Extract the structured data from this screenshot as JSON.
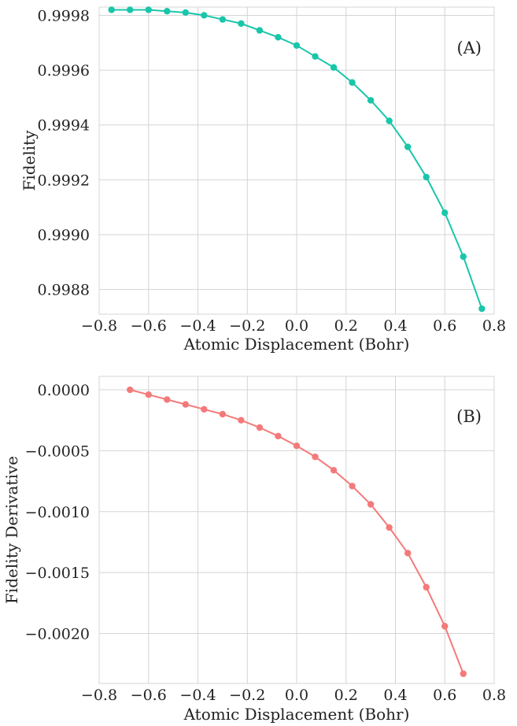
{
  "chart_data": [
    {
      "type": "line",
      "panel_label": "(A)",
      "xlabel": "Atomic Displacement (Bohr)",
      "ylabel": "Fidelity",
      "xlim": [
        -0.8,
        0.8
      ],
      "ylim": [
        0.99871,
        0.99983
      ],
      "xticks": [
        -0.8,
        -0.6,
        -0.4,
        -0.2,
        0.0,
        0.2,
        0.4,
        0.6,
        0.8
      ],
      "xtick_labels": [
        "−0.8",
        "−0.6",
        "−0.4",
        "−0.2",
        "0.0",
        "0.2",
        "0.4",
        "0.6",
        "0.8"
      ],
      "yticks": [
        0.9988,
        0.999,
        0.9992,
        0.9994,
        0.9996,
        0.9998
      ],
      "ytick_labels": [
        "0.9988",
        "0.9990",
        "0.9992",
        "0.9994",
        "0.9996",
        "0.9998"
      ],
      "grid": true,
      "color": "#19c6aa",
      "x": [
        -0.75,
        -0.675,
        -0.6,
        -0.525,
        -0.45,
        -0.375,
        -0.3,
        -0.225,
        -0.15,
        -0.075,
        0.0,
        0.075,
        0.15,
        0.225,
        0.3,
        0.375,
        0.45,
        0.525,
        0.6,
        0.675,
        0.75
      ],
      "y": [
        0.99982,
        0.99982,
        0.99982,
        0.999815,
        0.99981,
        0.9998,
        0.999785,
        0.99977,
        0.999745,
        0.99972,
        0.99969,
        0.99965,
        0.99961,
        0.999555,
        0.99949,
        0.999415,
        0.99932,
        0.99921,
        0.99908,
        0.99892,
        0.99873
      ]
    },
    {
      "type": "line",
      "panel_label": "(B)",
      "xlabel": "Atomic Displacement (Bohr)",
      "ylabel": "Fidelity Derivative",
      "xlim": [
        -0.8,
        0.8
      ],
      "ylim": [
        -0.00241,
        0.00011
      ],
      "xticks": [
        -0.8,
        -0.6,
        -0.4,
        -0.2,
        0.0,
        0.2,
        0.4,
        0.6,
        0.8
      ],
      "xtick_labels": [
        "−0.8",
        "−0.6",
        "−0.4",
        "−0.2",
        "0.0",
        "0.2",
        "0.4",
        "0.6",
        "0.8"
      ],
      "yticks": [
        -0.002,
        -0.0015,
        -0.001,
        -0.0005,
        0.0
      ],
      "ytick_labels": [
        "−0.0020",
        "−0.0015",
        "−0.0010",
        "−0.0005",
        "0.0000"
      ],
      "grid": true,
      "color": "#f47a7a",
      "x": [
        -0.675,
        -0.6,
        -0.525,
        -0.45,
        -0.375,
        -0.3,
        -0.225,
        -0.15,
        -0.075,
        0.0,
        0.075,
        0.15,
        0.225,
        0.3,
        0.375,
        0.45,
        0.525,
        0.6,
        0.675
      ],
      "y": [
        0.0,
        -4e-05,
        -8e-05,
        -0.00012,
        -0.00016,
        -0.0002,
        -0.00025,
        -0.00031,
        -0.00038,
        -0.00046,
        -0.00055,
        -0.00066,
        -0.00079,
        -0.00094,
        -0.00113,
        -0.00134,
        -0.00162,
        -0.00194,
        -0.00233
      ]
    }
  ]
}
